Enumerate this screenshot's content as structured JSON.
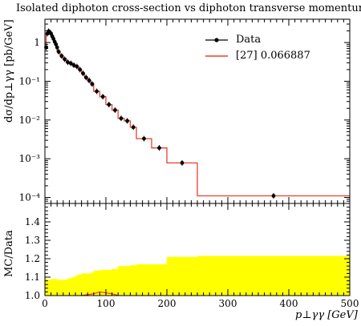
{
  "chart_data": {
    "type": "line",
    "title": "Isolated diphoton cross-section vs diphoton transverse momentum",
    "xlabel": "p⊥γγ [GeV]",
    "upper": {
      "ylabel": "dσ/dp⊥γγ [pb/GeV]",
      "yscale": "log",
      "ylim": [
        7e-05,
        4
      ],
      "ytick_labels": [
        "10⁻⁴",
        "10⁻³",
        "10⁻²",
        "10⁻¹",
        "1"
      ],
      "data_points": {
        "name": "Data",
        "x": [
          2,
          4,
          6,
          8,
          10,
          12,
          14,
          16,
          18,
          20,
          22.5,
          27.5,
          32.5,
          37.5,
          42.5,
          47.5,
          52.5,
          57.5,
          62.5,
          67.5,
          72.5,
          77.5,
          85,
          95,
          105,
          115,
          125,
          135,
          145,
          162.5,
          187.5,
          225,
          375
        ],
        "y": [
          0.75,
          1.7,
          1.95,
          1.85,
          1.7,
          1.45,
          1.25,
          1.05,
          0.9,
          0.75,
          0.58,
          0.45,
          0.37,
          0.31,
          0.29,
          0.26,
          0.24,
          0.2,
          0.16,
          0.125,
          0.105,
          0.085,
          0.055,
          0.04,
          0.025,
          0.018,
          0.011,
          0.0095,
          0.0065,
          0.0033,
          0.0019,
          0.00078,
          0.00011
        ]
      },
      "mc_histogram": {
        "name": "[27] 0.066887",
        "edges": [
          0,
          2,
          4,
          6,
          8,
          10,
          12,
          14,
          16,
          18,
          20,
          25,
          30,
          35,
          40,
          45,
          50,
          55,
          60,
          65,
          70,
          75,
          80,
          90,
          100,
          110,
          120,
          130,
          140,
          150,
          175,
          200,
          250,
          500
        ],
        "values": [
          0.8,
          1.75,
          2.0,
          1.9,
          1.7,
          1.45,
          1.25,
          1.05,
          0.9,
          0.75,
          0.58,
          0.45,
          0.37,
          0.31,
          0.29,
          0.26,
          0.24,
          0.2,
          0.16,
          0.125,
          0.105,
          0.085,
          0.055,
          0.04,
          0.025,
          0.018,
          0.011,
          0.0095,
          0.0065,
          0.0033,
          0.0019,
          0.00078,
          0.00011
        ]
      }
    },
    "lower": {
      "ylabel": "MC/Data",
      "ylim": [
        1.0,
        1.5
      ],
      "ytick_labels": [
        "1.0",
        "1.1",
        "1.2",
        "1.3",
        "1.4"
      ],
      "band_upper": [
        1.095,
        1.09,
        1.085,
        1.085,
        1.085,
        1.09,
        1.09,
        1.09,
        1.09,
        1.09,
        1.085,
        1.085,
        1.085,
        1.09,
        1.095,
        1.1,
        1.11,
        1.115,
        1.12,
        1.12,
        1.12,
        1.125,
        1.135,
        1.14,
        1.14,
        1.145,
        1.16,
        1.16,
        1.165,
        1.17,
        1.17,
        1.21,
        1.215
      ],
      "ratio_line": {
        "x": [
          60,
          70,
          80,
          90,
          100,
          110,
          120
        ],
        "y": [
          1.0,
          1.005,
          1.01,
          1.02,
          1.015,
          1.01,
          1.0
        ]
      }
    },
    "xaxis": {
      "xlim": [
        0,
        500
      ],
      "ticks": [
        0,
        100,
        200,
        300,
        400,
        500
      ],
      "tick_labels": [
        "0",
        "100",
        "200",
        "300",
        "400",
        "500"
      ]
    },
    "legend": {
      "position": "top-right"
    },
    "colors": {
      "data": "#000000",
      "mc": "#e8402a",
      "band": "#ffff00"
    }
  }
}
